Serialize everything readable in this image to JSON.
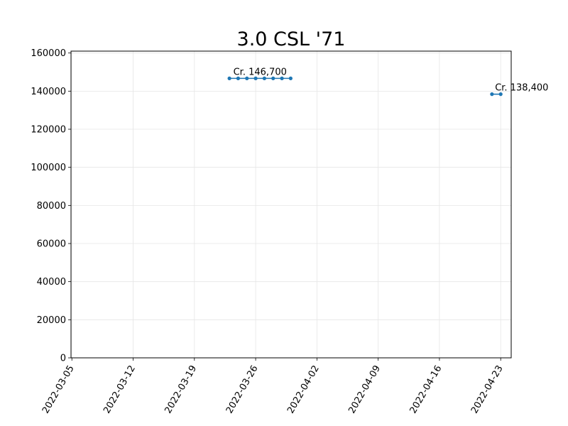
{
  "chart_data": {
    "type": "line",
    "title": "3.0 CSL '71",
    "xlabel": "",
    "ylabel": "",
    "x_range": [
      "2022-03-05",
      "2022-04-24"
    ],
    "ylim": [
      0,
      161000
    ],
    "grid": true,
    "color": "#1f77b4",
    "x_ticks": [
      "2022-03-05",
      "2022-03-12",
      "2022-03-19",
      "2022-03-26",
      "2022-04-02",
      "2022-04-09",
      "2022-04-16",
      "2022-04-23"
    ],
    "y_ticks": [
      0,
      20000,
      40000,
      60000,
      80000,
      100000,
      120000,
      140000,
      160000
    ],
    "segments": [
      {
        "x": [
          "2022-03-23",
          "2022-03-24",
          "2022-03-25",
          "2022-03-26",
          "2022-03-27",
          "2022-03-28",
          "2022-03-29",
          "2022-03-30"
        ],
        "y": [
          146700,
          146700,
          146700,
          146700,
          146700,
          146700,
          146700,
          146700
        ],
        "label": "Cr. 146,700"
      },
      {
        "x": [
          "2022-04-22",
          "2022-04-23"
        ],
        "y": [
          138400,
          138400
        ],
        "label": "Cr. 138,400"
      }
    ]
  }
}
